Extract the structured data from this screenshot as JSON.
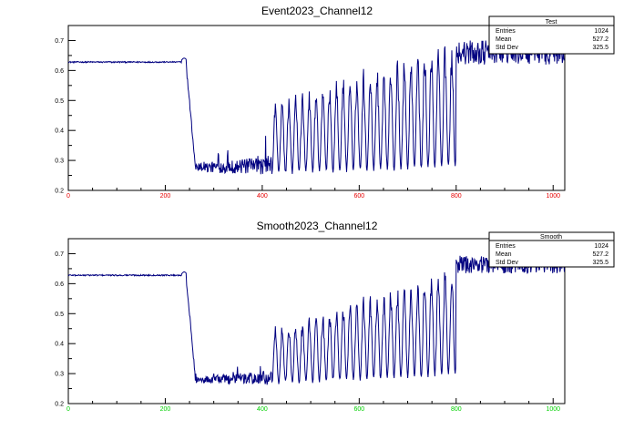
{
  "chart_data": [
    {
      "type": "line",
      "title": "Event2023_Channel12",
      "xlabel": "",
      "ylabel": "",
      "xlim": [
        0,
        1024
      ],
      "ylim": [
        0.2,
        0.75
      ],
      "xticks": [
        "0",
        "200",
        "400",
        "600",
        "800",
        "1000"
      ],
      "yticks": [
        "0.2",
        "0.3",
        "0.4",
        "0.5",
        "0.6",
        "0.7"
      ],
      "x_tick_color": "#e60000",
      "line_color": "#000080",
      "grid": false,
      "legend": "top-right",
      "stats": {
        "name": "Test",
        "rows": [
          {
            "label": "Entries",
            "value": "1024"
          },
          {
            "label": "Mean",
            "value": "527.2"
          },
          {
            "label": "Std Dev",
            "value": "325.5"
          }
        ]
      },
      "segments": [
        {
          "from": 0,
          "to": 234,
          "kind": "flat",
          "level": 0.628
        },
        {
          "from": 234,
          "to": 244,
          "kind": "bump",
          "level": 0.635
        },
        {
          "from": 244,
          "to": 262,
          "kind": "drop",
          "start": 0.6,
          "end": 0.28
        },
        {
          "from": 262,
          "to": 420,
          "kind": "noise",
          "base": 0.27,
          "amp_start": 0.03,
          "amp_end": 0.06
        },
        {
          "from": 420,
          "to": 800,
          "kind": "osc",
          "low_start": 0.26,
          "low_end": 0.28,
          "high_start": 0.5,
          "high_end": 0.71,
          "period": 14
        },
        {
          "from": 800,
          "to": 1024,
          "kind": "high",
          "level": 0.66,
          "amp": 0.04
        }
      ],
      "series": [
        {
          "name": "Event2023_Channel12",
          "values": []
        }
      ]
    },
    {
      "type": "line",
      "title": "Smooth2023_Channel12",
      "xlabel": "",
      "ylabel": "",
      "xlim": [
        0,
        1024
      ],
      "ylim": [
        0.2,
        0.75
      ],
      "xticks": [
        "0",
        "200",
        "400",
        "600",
        "800",
        "1000"
      ],
      "yticks": [
        "0.2",
        "0.3",
        "0.4",
        "0.5",
        "0.6",
        "0.7"
      ],
      "x_tick_color": "#00d000",
      "line_color": "#000080",
      "grid": false,
      "legend": "top-right",
      "stats": {
        "name": "Smooth",
        "rows": [
          {
            "label": "Entries",
            "value": "1024"
          },
          {
            "label": "Mean",
            "value": "527.2"
          },
          {
            "label": "Std Dev",
            "value": "325.5"
          }
        ]
      },
      "segments": [
        {
          "from": 0,
          "to": 234,
          "kind": "flat",
          "level": 0.628
        },
        {
          "from": 234,
          "to": 244,
          "kind": "bump",
          "level": 0.633
        },
        {
          "from": 244,
          "to": 262,
          "kind": "drop",
          "start": 0.6,
          "end": 0.29
        },
        {
          "from": 262,
          "to": 420,
          "kind": "noise",
          "base": 0.275,
          "amp_start": 0.02,
          "amp_end": 0.05
        },
        {
          "from": 420,
          "to": 800,
          "kind": "osc",
          "low_start": 0.27,
          "low_end": 0.3,
          "high_start": 0.45,
          "high_end": 0.67,
          "period": 14
        },
        {
          "from": 800,
          "to": 1024,
          "kind": "high",
          "level": 0.665,
          "amp": 0.03
        }
      ],
      "series": [
        {
          "name": "Smooth2023_Channel12",
          "values": []
        }
      ]
    }
  ]
}
